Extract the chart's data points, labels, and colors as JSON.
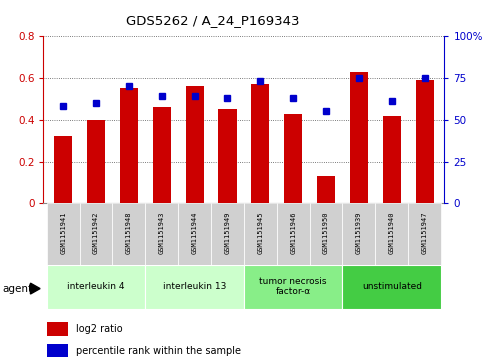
{
  "title": "GDS5262 / A_24_P169343",
  "samples": [
    "GSM1151941",
    "GSM1151942",
    "GSM1151948",
    "GSM1151943",
    "GSM1151944",
    "GSM1151949",
    "GSM1151945",
    "GSM1151946",
    "GSM1151950",
    "GSM1151939",
    "GSM1151940",
    "GSM1151947"
  ],
  "log2_ratio": [
    0.32,
    0.4,
    0.55,
    0.46,
    0.56,
    0.45,
    0.57,
    0.43,
    0.13,
    0.63,
    0.42,
    0.59
  ],
  "percentile_rank": [
    58,
    60,
    70,
    64,
    64,
    63,
    73,
    63,
    55,
    75,
    61,
    75
  ],
  "bar_color": "#cc0000",
  "dot_color": "#0000cc",
  "groups": [
    {
      "label": "interleukin 4",
      "start": 0,
      "end": 3,
      "color": "#ccffcc"
    },
    {
      "label": "interleukin 13",
      "start": 3,
      "end": 6,
      "color": "#ccffcc"
    },
    {
      "label": "tumor necrosis\nfactor-α",
      "start": 6,
      "end": 9,
      "color": "#88ee88"
    },
    {
      "label": "unstimulated",
      "start": 9,
      "end": 12,
      "color": "#44cc44"
    }
  ],
  "ylim_left": [
    0,
    0.8
  ],
  "ylim_right": [
    0,
    100
  ],
  "yticks_left": [
    0,
    0.2,
    0.4,
    0.6,
    0.8
  ],
  "yticks_right": [
    0,
    25,
    50,
    75,
    100
  ],
  "ytick_labels_left": [
    "0",
    "0.2",
    "0.4",
    "0.6",
    "0.8"
  ],
  "ytick_labels_right": [
    "0",
    "25",
    "50",
    "75",
    "100%"
  ],
  "left_axis_color": "#cc0000",
  "right_axis_color": "#0000cc",
  "agent_label": "agent",
  "legend_items": [
    {
      "color": "#cc0000",
      "label": "log2 ratio"
    },
    {
      "color": "#0000cc",
      "label": "percentile rank within the sample"
    }
  ],
  "bar_width": 0.55,
  "sample_cell_color": "#d0d0d0",
  "grid_color": "#505050",
  "background_color": "#ffffff",
  "fig_width": 4.83,
  "fig_height": 3.63,
  "fig_dpi": 100
}
